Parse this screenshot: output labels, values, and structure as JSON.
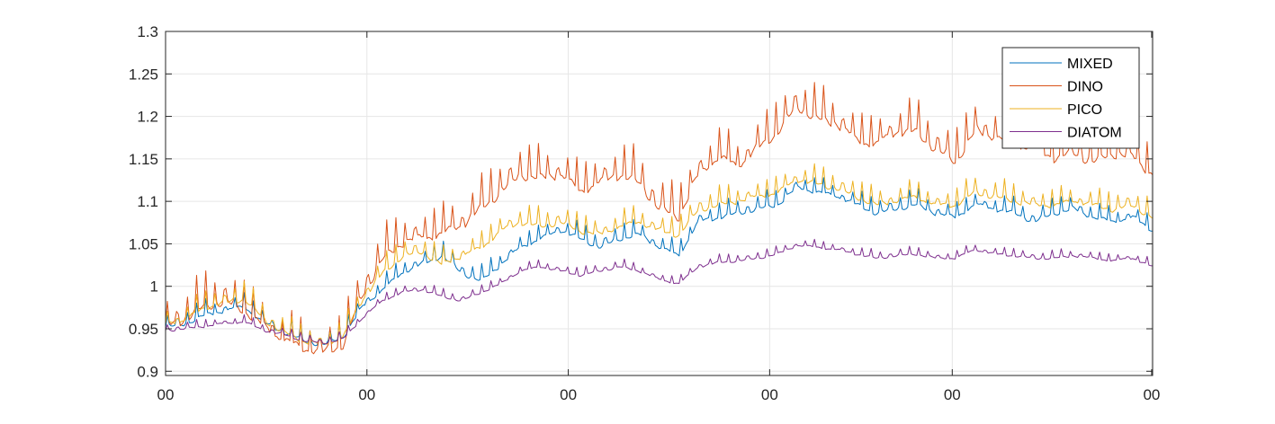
{
  "chart_data": {
    "type": "line",
    "title": "",
    "xlabel": "",
    "ylabel": "",
    "xlim": [
      0,
      100
    ],
    "ylim": [
      0.895,
      1.3
    ],
    "grid": true,
    "legend_position": "top-right",
    "x_ticks": [
      {
        "x": 0,
        "label": "00"
      },
      {
        "x": 20.4,
        "label": "00"
      },
      {
        "x": 40.8,
        "label": "00"
      },
      {
        "x": 61.2,
        "label": "00"
      },
      {
        "x": 79.7,
        "label": "00"
      },
      {
        "x": 99.9,
        "label": "00"
      }
    ],
    "y_ticks": [
      {
        "y": 0.9,
        "label": "0.9"
      },
      {
        "y": 0.95,
        "label": "0.95"
      },
      {
        "y": 1.0,
        "label": "1"
      },
      {
        "y": 1.05,
        "label": "1.05"
      },
      {
        "y": 1.1,
        "label": "1.1"
      },
      {
        "y": 1.15,
        "label": "1.15"
      },
      {
        "y": 1.2,
        "label": "1.2"
      },
      {
        "y": 1.25,
        "label": "1.25"
      },
      {
        "y": 1.3,
        "label": "1.3"
      }
    ],
    "series": [
      {
        "name": "MIXED",
        "color": "#0072BD",
        "x": [
          0,
          2,
          4,
          6,
          8,
          10,
          12,
          14,
          16,
          18,
          20,
          22,
          24,
          26,
          28,
          30,
          32,
          34,
          36,
          38,
          40,
          42,
          44,
          46,
          48,
          50,
          52,
          54,
          56,
          58,
          60,
          62,
          64,
          66,
          68,
          70,
          72,
          74,
          76,
          78,
          80,
          82,
          84,
          86,
          88,
          90,
          92,
          94,
          96,
          98,
          100
        ],
        "y": [
          0.955,
          0.96,
          0.97,
          0.975,
          0.98,
          0.96,
          0.95,
          0.94,
          0.935,
          0.945,
          0.98,
          1.0,
          1.02,
          1.03,
          1.04,
          1.02,
          1.01,
          1.03,
          1.05,
          1.06,
          1.07,
          1.06,
          1.05,
          1.06,
          1.065,
          1.05,
          1.04,
          1.08,
          1.085,
          1.09,
          1.095,
          1.1,
          1.12,
          1.115,
          1.11,
          1.1,
          1.09,
          1.095,
          1.1,
          1.09,
          1.085,
          1.1,
          1.095,
          1.09,
          1.08,
          1.09,
          1.095,
          1.085,
          1.08,
          1.085,
          1.07
        ],
        "amplitude": 0.012
      },
      {
        "name": "DINO",
        "color": "#D95319",
        "x": [
          0,
          2,
          4,
          6,
          8,
          10,
          12,
          14,
          16,
          18,
          20,
          22,
          24,
          26,
          28,
          30,
          32,
          34,
          36,
          38,
          40,
          42,
          44,
          46,
          48,
          50,
          52,
          54,
          56,
          58,
          60,
          62,
          64,
          66,
          68,
          70,
          72,
          74,
          76,
          78,
          80,
          82,
          84,
          86,
          88,
          90,
          92,
          94,
          96,
          98,
          100
        ],
        "y": [
          0.96,
          0.97,
          0.985,
          0.99,
          0.98,
          0.96,
          0.945,
          0.935,
          0.93,
          0.94,
          1.0,
          1.04,
          1.06,
          1.065,
          1.07,
          1.08,
          1.1,
          1.12,
          1.14,
          1.135,
          1.14,
          1.12,
          1.13,
          1.14,
          1.13,
          1.1,
          1.09,
          1.14,
          1.16,
          1.15,
          1.17,
          1.19,
          1.22,
          1.205,
          1.2,
          1.18,
          1.175,
          1.19,
          1.19,
          1.17,
          1.155,
          1.19,
          1.185,
          1.175,
          1.17,
          1.16,
          1.165,
          1.155,
          1.165,
          1.16,
          1.14
        ],
        "amplitude": 0.025
      },
      {
        "name": "PICO",
        "color": "#EDB120",
        "x": [
          0,
          2,
          4,
          6,
          8,
          10,
          12,
          14,
          16,
          18,
          20,
          22,
          24,
          26,
          28,
          30,
          32,
          34,
          36,
          38,
          40,
          42,
          44,
          46,
          48,
          50,
          52,
          54,
          56,
          58,
          60,
          62,
          64,
          66,
          68,
          70,
          72,
          74,
          76,
          78,
          80,
          82,
          84,
          86,
          88,
          90,
          92,
          94,
          96,
          98,
          100
        ],
        "y": [
          0.96,
          0.965,
          0.98,
          0.985,
          0.99,
          0.965,
          0.95,
          0.94,
          0.935,
          0.945,
          0.99,
          1.02,
          1.04,
          1.045,
          1.03,
          1.04,
          1.05,
          1.07,
          1.08,
          1.075,
          1.08,
          1.07,
          1.065,
          1.075,
          1.08,
          1.07,
          1.065,
          1.095,
          1.1,
          1.105,
          1.11,
          1.115,
          1.13,
          1.125,
          1.12,
          1.11,
          1.1,
          1.105,
          1.11,
          1.1,
          1.1,
          1.115,
          1.11,
          1.105,
          1.1,
          1.1,
          1.105,
          1.1,
          1.095,
          1.1,
          1.085
        ],
        "amplitude": 0.014
      },
      {
        "name": "DIATOM",
        "color": "#7E2F8E",
        "x": [
          0,
          2,
          4,
          6,
          8,
          10,
          12,
          14,
          16,
          18,
          20,
          22,
          24,
          26,
          28,
          30,
          32,
          34,
          36,
          38,
          40,
          42,
          44,
          46,
          48,
          50,
          52,
          54,
          56,
          58,
          60,
          62,
          64,
          66,
          68,
          70,
          72,
          74,
          76,
          78,
          80,
          82,
          84,
          86,
          88,
          90,
          92,
          94,
          96,
          98,
          100
        ],
        "y": [
          0.95,
          0.952,
          0.955,
          0.958,
          0.96,
          0.95,
          0.945,
          0.938,
          0.935,
          0.94,
          0.965,
          0.985,
          0.995,
          0.998,
          0.99,
          0.985,
          0.995,
          1.005,
          1.02,
          1.025,
          1.02,
          1.015,
          1.02,
          1.025,
          1.02,
          1.01,
          1.005,
          1.025,
          1.03,
          1.032,
          1.035,
          1.04,
          1.05,
          1.048,
          1.045,
          1.04,
          1.035,
          1.038,
          1.04,
          1.035,
          1.035,
          1.045,
          1.04,
          1.038,
          1.035,
          1.035,
          1.038,
          1.035,
          1.032,
          1.035,
          1.025
        ],
        "amplitude": 0.006
      }
    ]
  }
}
